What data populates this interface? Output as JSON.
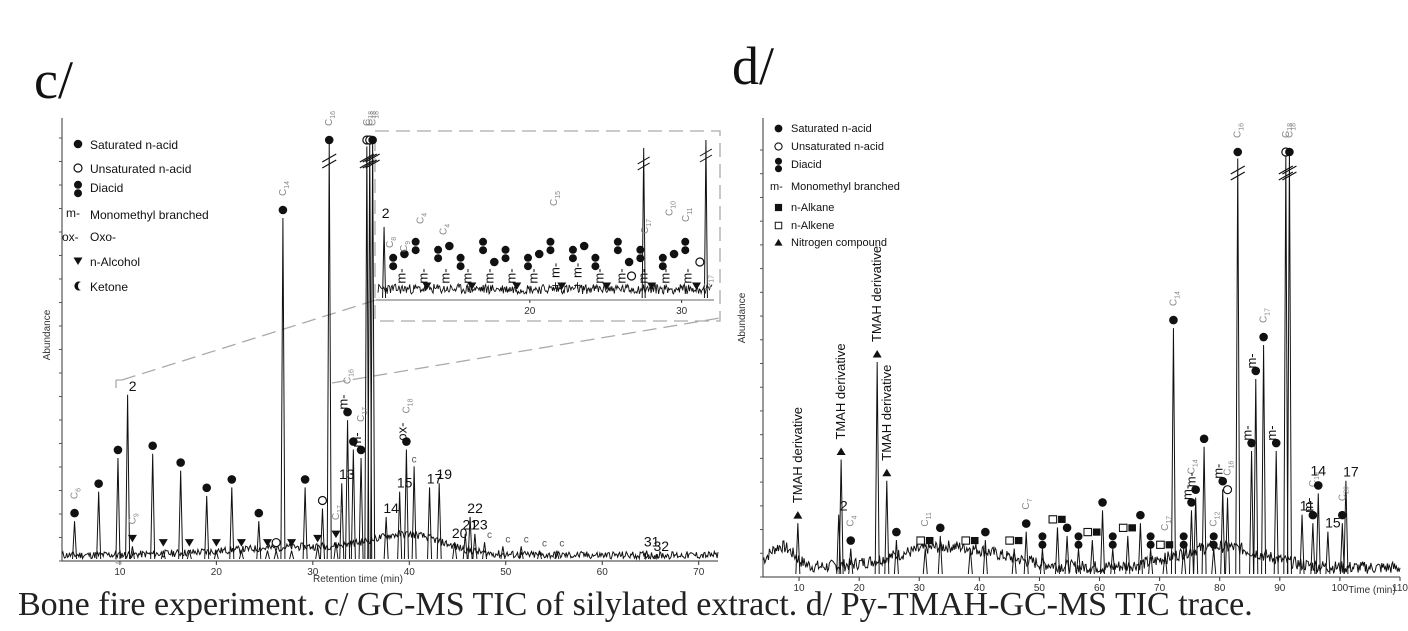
{
  "caption": "Bone fire experiment. c/ GC-MS TIC of silylated extract. d/ Py-TMAH-GC-MS TIC trace.",
  "chart_data": [
    {
      "panel": "c/",
      "type": "line",
      "xlabel": "Retention time (min)",
      "ylabel": "Abundance",
      "xlim": [
        4,
        72
      ],
      "xticks": [
        10,
        20,
        30,
        40,
        50,
        60,
        70
      ],
      "legend": {
        "placement": "top-left",
        "entries": [
          {
            "symbol": "filled-circle",
            "label": "Saturated n-acid"
          },
          {
            "symbol": "open-circle",
            "label": "Unsaturated n-acid"
          },
          {
            "symbol": "double-circle",
            "label": "Diacid"
          },
          {
            "symbol": "m-",
            "label": "Monomethyl branched"
          },
          {
            "symbol": "ox-",
            "label": "Oxo-"
          },
          {
            "symbol": "triangle-down",
            "label": "n-Alcohol"
          },
          {
            "symbol": "crescent",
            "label": "Ketone"
          }
        ]
      },
      "peaks": [
        {
          "x": 5.3,
          "y": 0.09,
          "mark": "filled-circle",
          "label": "C6"
        },
        {
          "x": 7.8,
          "y": 0.16,
          "mark": "filled-circle"
        },
        {
          "x": 9.8,
          "y": 0.24,
          "mark": "filled-circle"
        },
        {
          "x": 10.8,
          "y": 0.39,
          "label": "2"
        },
        {
          "x": 11.3,
          "y": 0.03,
          "mark": "triangle-down",
          "label": "C9"
        },
        {
          "x": 13.4,
          "y": 0.25,
          "mark": "filled-circle"
        },
        {
          "x": 14.5,
          "y": 0.02,
          "mark": "triangle-down"
        },
        {
          "x": 16.3,
          "y": 0.21,
          "mark": "filled-circle"
        },
        {
          "x": 17.2,
          "y": 0.02,
          "mark": "triangle-down"
        },
        {
          "x": 19.0,
          "y": 0.15,
          "mark": "filled-circle"
        },
        {
          "x": 20.0,
          "y": 0.02,
          "mark": "triangle-down"
        },
        {
          "x": 21.6,
          "y": 0.17,
          "mark": "filled-circle"
        },
        {
          "x": 22.6,
          "y": 0.02,
          "mark": "triangle-down"
        },
        {
          "x": 24.4,
          "y": 0.09,
          "mark": "filled-circle"
        },
        {
          "x": 25.3,
          "y": 0.02,
          "mark": "triangle-down"
        },
        {
          "x": 26.2,
          "y": 0.02,
          "mark": "open-circle"
        },
        {
          "x": 26.9,
          "y": 0.81,
          "mark": "filled-circle",
          "label": "C14"
        },
        {
          "x": 27.8,
          "y": 0.02,
          "mark": "triangle-down"
        },
        {
          "x": 29.2,
          "y": 0.17,
          "mark": "filled-circle"
        },
        {
          "x": 30.5,
          "y": 0.03,
          "mark": "triangle-down"
        },
        {
          "x": 31.0,
          "y": 0.12,
          "mark": "open-circle"
        },
        {
          "x": 31.7,
          "y": 0.99,
          "mark": "filled-circle",
          "label": "C16",
          "truncated": true
        },
        {
          "x": 32.4,
          "y": 0.04,
          "mark": "triangle-down",
          "label": "C17"
        },
        {
          "x": 33.0,
          "y": 0.18,
          "label": "13"
        },
        {
          "x": 33.6,
          "y": 0.33,
          "mark": "filled-circle",
          "prefix": "m-",
          "label": "C16"
        },
        {
          "x": 34.2,
          "y": 0.26,
          "mark": "filled-circle"
        },
        {
          "x": 35.0,
          "y": 0.24,
          "mark": "filled-circle",
          "prefix": "m-",
          "label": "C17"
        },
        {
          "x": 35.6,
          "y": 0.98,
          "mark": "open-circle",
          "label": "C18",
          "truncated": true
        },
        {
          "x": 35.9,
          "y": 0.99,
          "mark": "open-circle",
          "label": "C18",
          "truncated": true
        },
        {
          "x": 36.2,
          "y": 1.0,
          "mark": "filled-circle",
          "label": "C18",
          "truncated": true
        },
        {
          "x": 37.6,
          "y": 0.1,
          "label": "14"
        },
        {
          "x": 39.0,
          "y": 0.16,
          "label": "15"
        },
        {
          "x": 39.7,
          "y": 0.26,
          "mark": "filled-circle",
          "prefix": "ox-",
          "label": "C18"
        },
        {
          "x": 40.5,
          "y": 0.22,
          "mark": "c",
          "label": "c"
        },
        {
          "x": 42.1,
          "y": 0.17,
          "label": "17"
        },
        {
          "x": 43.1,
          "y": 0.18,
          "label": "19"
        },
        {
          "x": 44.7,
          "y": 0.04,
          "label": "20"
        },
        {
          "x": 45.8,
          "y": 0.06,
          "label": "21"
        },
        {
          "x": 46.3,
          "y": 0.1,
          "label": "22"
        },
        {
          "x": 46.8,
          "y": 0.06,
          "label": "23"
        },
        {
          "x": 47.8,
          "y": 0.04,
          "label": "c"
        },
        {
          "x": 49.7,
          "y": 0.03,
          "label": "c"
        },
        {
          "x": 51.6,
          "y": 0.03,
          "label": "c"
        },
        {
          "x": 53.5,
          "y": 0.02,
          "label": "c"
        },
        {
          "x": 55.3,
          "y": 0.02,
          "label": "c"
        },
        {
          "x": 64.6,
          "y": 0.02,
          "label": "31"
        },
        {
          "x": 65.6,
          "y": 0.01,
          "label": "32"
        }
      ],
      "inset": {
        "zoom_range": [
          10,
          32
        ],
        "xticks": [
          20,
          30
        ],
        "labels": [
          "2",
          "C8",
          "C9",
          "C4",
          "C4",
          "C15",
          "C17",
          "C10",
          "C11",
          "C17"
        ],
        "marks": [
          "m-",
          "m-",
          "m-",
          "m-",
          "m-",
          "m-",
          "m-",
          "+ m-",
          "+ m-",
          "m-",
          "m-",
          "m-",
          "m-",
          "m-"
        ]
      }
    },
    {
      "panel": "d/",
      "type": "line",
      "xlabel": "Time (min)",
      "ylabel": "Abundance",
      "xlim": [
        4,
        110
      ],
      "xticks": [
        10,
        20,
        30,
        40,
        50,
        60,
        70,
        80,
        90,
        100,
        110
      ],
      "legend": {
        "placement": "top-left",
        "entries": [
          {
            "symbol": "filled-circle",
            "label": "Saturated n-acid"
          },
          {
            "symbol": "open-circle",
            "label": "Unsaturated n-acid"
          },
          {
            "symbol": "double-circle",
            "label": "Diacid"
          },
          {
            "symbol": "m-",
            "label": "Monomethyl branched"
          },
          {
            "symbol": "filled-square",
            "label": "n-Alkane"
          },
          {
            "symbol": "open-square",
            "label": "n-Alkene"
          },
          {
            "symbol": "triangle-up",
            "label": "Nitrogen compound"
          }
        ]
      },
      "peaks": [
        {
          "x": 9.8,
          "y": 0.12,
          "mark": "triangle-up",
          "label": "TMAH derivative"
        },
        {
          "x": 16.6,
          "y": 0.14,
          "label": "2"
        },
        {
          "x": 17.0,
          "y": 0.27,
          "mark": "triangle-up",
          "label": "TMAH derivative"
        },
        {
          "x": 18.6,
          "y": 0.06,
          "mark": "filled-circle",
          "label": "C4"
        },
        {
          "x": 23.0,
          "y": 0.5,
          "mark": "triangle-up",
          "label": "TMAH derivative"
        },
        {
          "x": 24.6,
          "y": 0.22,
          "mark": "triangle-up",
          "label": "TMAH derivative"
        },
        {
          "x": 26.2,
          "y": 0.08,
          "mark": "filled-circle"
        },
        {
          "x": 31.0,
          "y": 0.06,
          "mark": "square-pair",
          "label": "C11"
        },
        {
          "x": 33.5,
          "y": 0.09,
          "mark": "filled-circle"
        },
        {
          "x": 38.5,
          "y": 0.06,
          "mark": "square-pair"
        },
        {
          "x": 41.0,
          "y": 0.08,
          "mark": "filled-circle"
        },
        {
          "x": 45.8,
          "y": 0.06,
          "mark": "square-pair"
        },
        {
          "x": 47.8,
          "y": 0.1,
          "mark": "filled-circle",
          "label": "C7"
        },
        {
          "x": 50.5,
          "y": 0.06,
          "mark": "double-circle"
        },
        {
          "x": 53.0,
          "y": 0.11,
          "mark": "square-pair"
        },
        {
          "x": 54.6,
          "y": 0.09,
          "mark": "filled-circle"
        },
        {
          "x": 56.5,
          "y": 0.06,
          "mark": "double-circle"
        },
        {
          "x": 58.8,
          "y": 0.08,
          "mark": "square-pair"
        },
        {
          "x": 60.5,
          "y": 0.15,
          "mark": "filled-circle"
        },
        {
          "x": 62.2,
          "y": 0.06,
          "mark": "double-circle"
        },
        {
          "x": 64.7,
          "y": 0.09,
          "mark": "square-pair"
        },
        {
          "x": 66.8,
          "y": 0.12,
          "mark": "filled-circle"
        },
        {
          "x": 68.5,
          "y": 0.06,
          "mark": "double-circle"
        },
        {
          "x": 70.9,
          "y": 0.05,
          "mark": "square-pair",
          "label": "C17"
        },
        {
          "x": 72.3,
          "y": 0.58,
          "mark": "filled-circle",
          "label": "C14"
        },
        {
          "x": 74.0,
          "y": 0.06,
          "mark": "double-circle"
        },
        {
          "x": 75.3,
          "y": 0.15,
          "mark": "filled-circle",
          "prefix": "m-",
          "label": "C14"
        },
        {
          "x": 76.0,
          "y": 0.18,
          "mark": "filled-circle",
          "prefix": "m-"
        },
        {
          "x": 77.4,
          "y": 0.3,
          "mark": "filled-circle"
        },
        {
          "x": 79.0,
          "y": 0.06,
          "mark": "double-circle",
          "label": "C12"
        },
        {
          "x": 80.5,
          "y": 0.2,
          "mark": "filled-circle",
          "prefix": "m-"
        },
        {
          "x": 81.3,
          "y": 0.18,
          "mark": "open-circle",
          "label": "C16"
        },
        {
          "x": 83.0,
          "y": 0.98,
          "mark": "filled-circle",
          "label": "C16",
          "truncated": true
        },
        {
          "x": 85.3,
          "y": 0.29,
          "mark": "filled-circle",
          "prefix": "m-"
        },
        {
          "x": 86.0,
          "y": 0.46,
          "mark": "filled-circle",
          "prefix": "m-"
        },
        {
          "x": 87.3,
          "y": 0.54,
          "mark": "filled-circle",
          "label": "C17"
        },
        {
          "x": 89.4,
          "y": 0.29,
          "mark": "filled-circle",
          "prefix": "m-"
        },
        {
          "x": 91.0,
          "y": 0.99,
          "mark": "open-circle",
          "label": "C18",
          "truncated": true
        },
        {
          "x": 91.6,
          "y": 1.0,
          "mark": "filled-circle",
          "label": "C18",
          "truncated": true
        },
        {
          "x": 93.7,
          "y": 0.14,
          "label": "11"
        },
        {
          "x": 95.5,
          "y": 0.12,
          "mark": "filled-circle",
          "prefix": "m-",
          "label": "C19"
        },
        {
          "x": 96.4,
          "y": 0.19,
          "mark": "filled-circle",
          "label": "14"
        },
        {
          "x": 98.0,
          "y": 0.1,
          "label": "15"
        },
        {
          "x": 100.4,
          "y": 0.12,
          "mark": "filled-circle",
          "label": "C20"
        },
        {
          "x": 101.0,
          "y": 0.22,
          "label": "17"
        }
      ]
    }
  ]
}
